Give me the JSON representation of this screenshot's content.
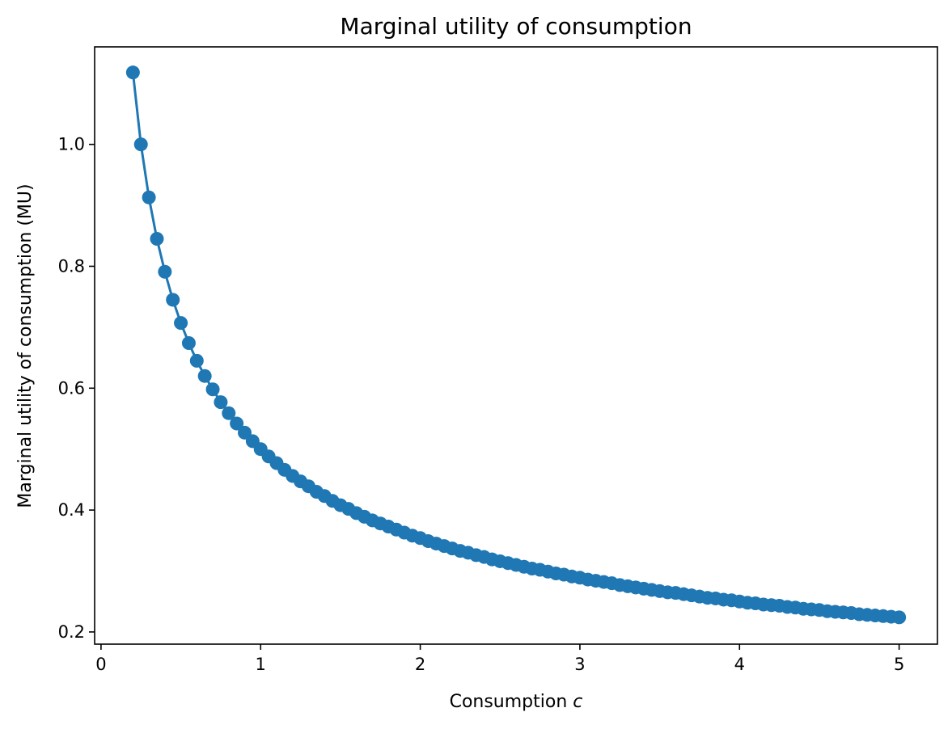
{
  "chart_data": {
    "type": "line",
    "title": "Marginal utility of consumption",
    "xlabel": "Consumption",
    "xlabel_var": "c",
    "ylabel": "Marginal utility of consumption (MU)",
    "xlim": [
      -0.04,
      5.24
    ],
    "ylim": [
      0.18,
      1.16
    ],
    "xticks": [
      0,
      1,
      2,
      3,
      4,
      5
    ],
    "xtick_labels": [
      "0",
      "1",
      "2",
      "3",
      "4",
      "5"
    ],
    "yticks": [
      0.2,
      0.4,
      0.6,
      0.8,
      1.0
    ],
    "ytick_labels": [
      "0.2",
      "0.4",
      "0.6",
      "0.8",
      "1.0"
    ],
    "grid": false,
    "marker": "circle",
    "series": [
      {
        "color": "#1f77b4",
        "x": [
          0.2,
          0.25,
          0.3,
          0.35,
          0.4,
          0.45,
          0.5,
          0.55,
          0.6,
          0.65,
          0.7,
          0.75,
          0.8,
          0.85,
          0.9,
          0.95,
          1.0,
          1.05,
          1.1,
          1.15,
          1.2,
          1.25,
          1.3,
          1.35,
          1.4,
          1.45,
          1.5,
          1.55,
          1.6,
          1.65,
          1.7,
          1.75,
          1.8,
          1.85,
          1.9,
          1.95,
          2.0,
          2.05,
          2.1,
          2.15,
          2.2,
          2.25,
          2.3,
          2.35,
          2.4,
          2.45,
          2.5,
          2.55,
          2.6,
          2.65,
          2.7,
          2.75,
          2.8,
          2.85,
          2.9,
          2.95,
          3.0,
          3.05,
          3.1,
          3.15,
          3.2,
          3.25,
          3.3,
          3.35,
          3.4,
          3.45,
          3.5,
          3.55,
          3.6,
          3.65,
          3.7,
          3.75,
          3.8,
          3.85,
          3.9,
          3.95,
          4.0,
          4.05,
          4.1,
          4.15,
          4.2,
          4.25,
          4.3,
          4.35,
          4.4,
          4.45,
          4.5,
          4.55,
          4.6,
          4.65,
          4.7,
          4.75,
          4.8,
          4.85,
          4.9,
          4.95,
          5.0
        ],
        "y": [
          1.118,
          1.0,
          0.913,
          0.845,
          0.791,
          0.745,
          0.707,
          0.674,
          0.645,
          0.62,
          0.598,
          0.577,
          0.559,
          0.542,
          0.527,
          0.513,
          0.5,
          0.488,
          0.477,
          0.466,
          0.456,
          0.447,
          0.439,
          0.43,
          0.423,
          0.415,
          0.408,
          0.402,
          0.395,
          0.389,
          0.383,
          0.378,
          0.373,
          0.368,
          0.363,
          0.358,
          0.354,
          0.349,
          0.345,
          0.341,
          0.337,
          0.333,
          0.33,
          0.326,
          0.323,
          0.319,
          0.316,
          0.313,
          0.31,
          0.307,
          0.304,
          0.302,
          0.299,
          0.296,
          0.294,
          0.291,
          0.289,
          0.286,
          0.284,
          0.282,
          0.28,
          0.277,
          0.275,
          0.273,
          0.271,
          0.269,
          0.267,
          0.265,
          0.264,
          0.262,
          0.26,
          0.258,
          0.256,
          0.255,
          0.253,
          0.252,
          0.25,
          0.248,
          0.247,
          0.245,
          0.244,
          0.243,
          0.241,
          0.24,
          0.238,
          0.237,
          0.236,
          0.234,
          0.233,
          0.232,
          0.231,
          0.229,
          0.228,
          0.227,
          0.226,
          0.225,
          0.224
        ]
      }
    ]
  }
}
